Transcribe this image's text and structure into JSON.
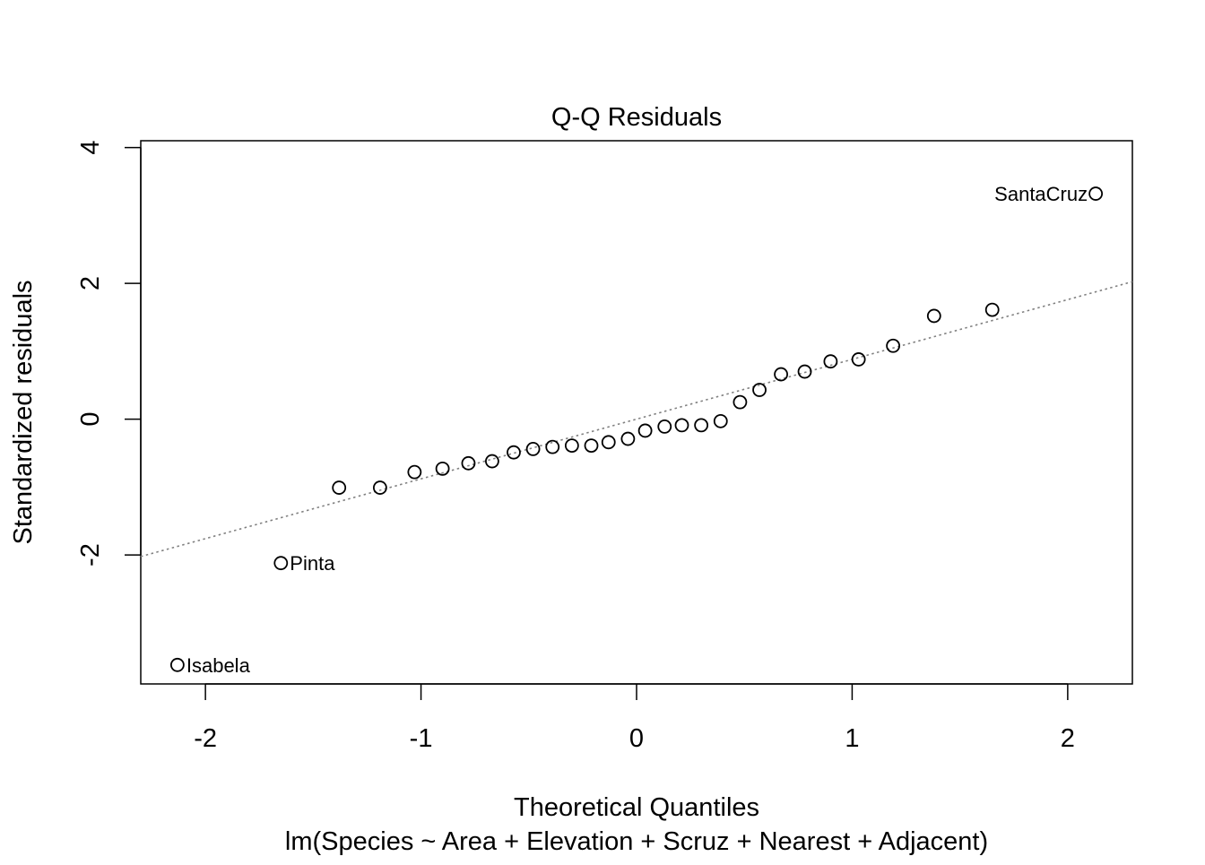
{
  "chart_data": {
    "type": "scatter",
    "title": "Q-Q Residuals",
    "xlabel": "Theoretical Quantiles",
    "subtitle": "lm(Species ~ Area + Elevation + Scruz + Nearest + Adjacent)",
    "ylabel": "Standardized residuals",
    "xlim": [
      -2.3,
      2.3
    ],
    "ylim": [
      -3.9,
      4.1
    ],
    "x_ticks": [
      -2,
      -1,
      0,
      1,
      2
    ],
    "x_tick_labels": [
      "-2",
      "-1",
      "0",
      "1",
      "2"
    ],
    "y_ticks": [
      -2,
      0,
      2,
      4
    ],
    "y_tick_labels": [
      "-2",
      "0",
      "2",
      "4"
    ],
    "grid": false,
    "reference_line": {
      "intercept": 0.0,
      "slope": 0.88,
      "style": "dotted",
      "color": "#808080"
    },
    "points": [
      {
        "x": -2.13,
        "y": -3.62,
        "label": "Isabela"
      },
      {
        "x": -1.65,
        "y": -2.12,
        "label": "Pinta"
      },
      {
        "x": -1.38,
        "y": -1.01
      },
      {
        "x": -1.19,
        "y": -1.01
      },
      {
        "x": -1.03,
        "y": -0.78
      },
      {
        "x": -0.9,
        "y": -0.73
      },
      {
        "x": -0.78,
        "y": -0.65
      },
      {
        "x": -0.67,
        "y": -0.62
      },
      {
        "x": -0.57,
        "y": -0.49
      },
      {
        "x": -0.48,
        "y": -0.44
      },
      {
        "x": -0.39,
        "y": -0.41
      },
      {
        "x": -0.3,
        "y": -0.39
      },
      {
        "x": -0.21,
        "y": -0.39
      },
      {
        "x": -0.13,
        "y": -0.34
      },
      {
        "x": -0.04,
        "y": -0.29
      },
      {
        "x": 0.04,
        "y": -0.17
      },
      {
        "x": 0.13,
        "y": -0.11
      },
      {
        "x": 0.21,
        "y": -0.09
      },
      {
        "x": 0.3,
        "y": -0.09
      },
      {
        "x": 0.39,
        "y": -0.03
      },
      {
        "x": 0.48,
        "y": 0.25
      },
      {
        "x": 0.57,
        "y": 0.43
      },
      {
        "x": 0.67,
        "y": 0.66
      },
      {
        "x": 0.78,
        "y": 0.7
      },
      {
        "x": 0.9,
        "y": 0.85
      },
      {
        "x": 1.03,
        "y": 0.88
      },
      {
        "x": 1.19,
        "y": 1.08
      },
      {
        "x": 1.38,
        "y": 1.52
      },
      {
        "x": 1.65,
        "y": 1.61
      },
      {
        "x": 2.13,
        "y": 3.32,
        "label": "SantaCruz"
      }
    ]
  }
}
